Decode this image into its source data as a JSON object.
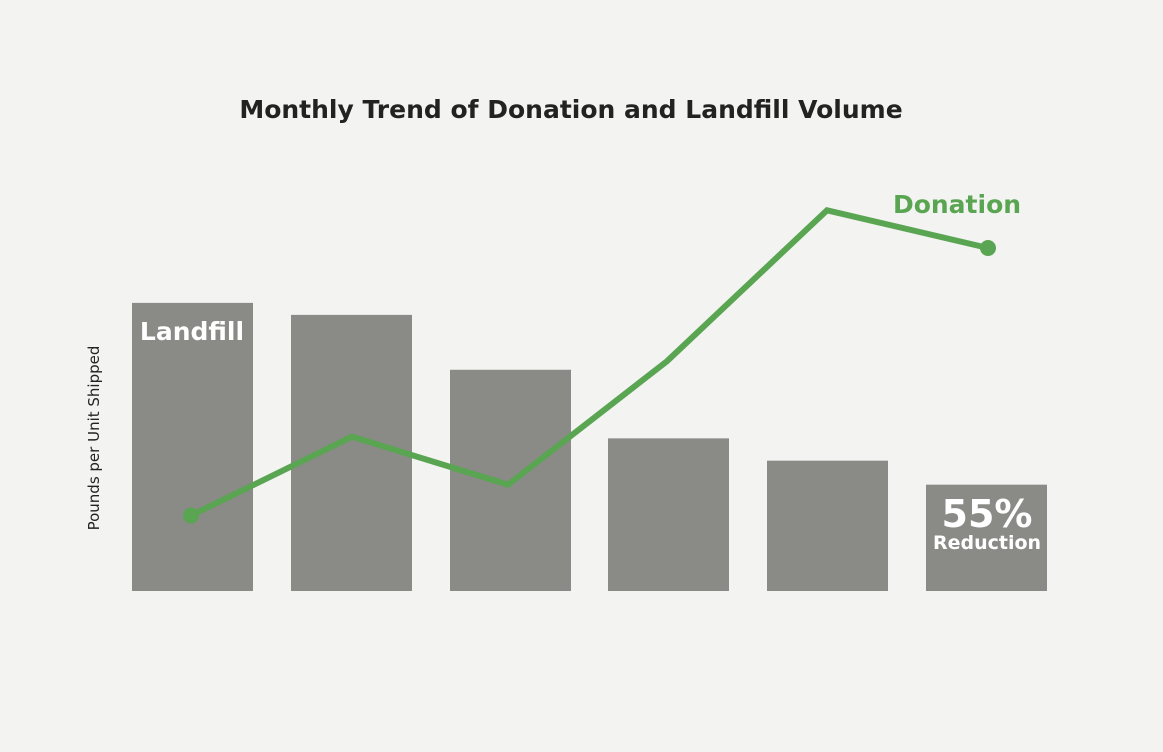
{
  "chart_data": {
    "type": "bar",
    "title": "Monthly Trend of Donation and Landfill Volume",
    "xlabel": "",
    "ylabel": "Pounds per Unit Shipped",
    "ylim": [
      0,
      100
    ],
    "categories": [
      "",
      "",
      "",
      "",
      "",
      ""
    ],
    "series": [
      {
        "name": "Landfill",
        "type": "bar",
        "values": [
          84,
          80.5,
          64.5,
          44.5,
          38,
          31
        ]
      },
      {
        "name": "Donation",
        "type": "line",
        "values": [
          22,
          45,
          31,
          67,
          111,
          100
        ]
      }
    ],
    "annotation": {
      "value": "55%",
      "text": "Reduction"
    },
    "grid": false,
    "legend": "none"
  },
  "colors": {
    "background": "#f3f3f1",
    "bar": "#8a8a86",
    "line": "#5aa552",
    "title": "#222222",
    "bar_text": "#ffffff"
  }
}
